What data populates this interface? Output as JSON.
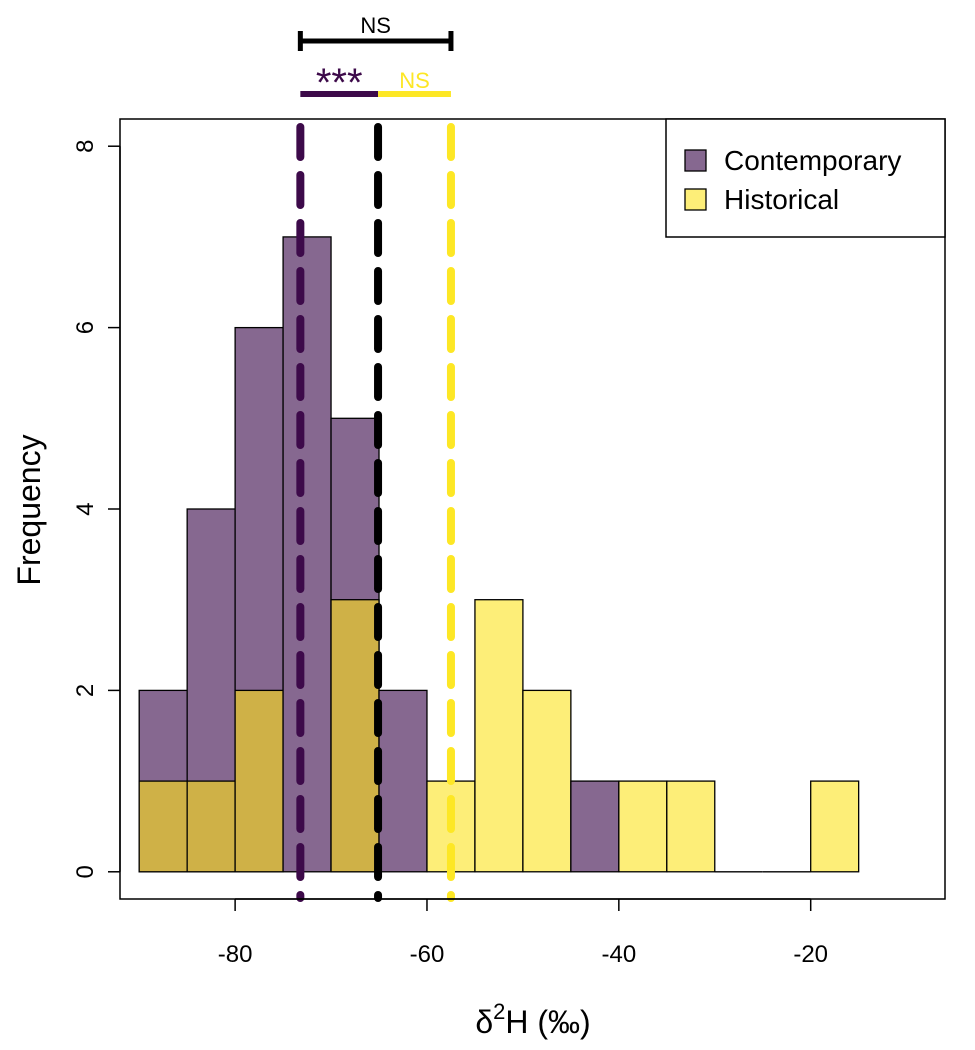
{
  "chart_data": {
    "type": "histogram",
    "xlabel_prefix": "δ",
    "xlabel_sup": "2",
    "xlabel_suffix": "H (‰)",
    "ylabel": "Frequency",
    "xlim": [
      -92,
      -6
    ],
    "ylim": [
      -0.3,
      8.3
    ],
    "x_ticks": [
      -80,
      -60,
      -40,
      -20
    ],
    "x_tick_labels": [
      "-80",
      "-60",
      "-40",
      "-20"
    ],
    "y_ticks": [
      0,
      2,
      4,
      6,
      8
    ],
    "y_tick_labels": [
      "0",
      "2",
      "4",
      "6",
      "8"
    ],
    "bin_edges": [
      -90,
      -85,
      -80,
      -75,
      -70,
      -65,
      -60,
      -55,
      -50,
      -45,
      -40,
      -35,
      -30,
      -25,
      -20,
      -15
    ],
    "series": [
      {
        "name": "Contemporary",
        "color": "#866890",
        "counts": [
          2,
          4,
          6,
          7,
          5,
          2,
          0,
          0,
          0,
          1,
          0,
          0,
          0,
          0,
          0
        ]
      },
      {
        "name": "Historical",
        "color": "#fdee78",
        "counts": [
          1,
          1,
          2,
          0,
          3,
          0,
          1,
          3,
          2,
          0,
          1,
          1,
          0,
          0,
          1
        ]
      }
    ],
    "overlap_color": "#cfb147",
    "means": [
      {
        "series": "Contemporary",
        "x": -73.2,
        "color": "#3d0a4a"
      },
      {
        "series": "All",
        "x": -65.1,
        "color": "#000000"
      },
      {
        "series": "Historical",
        "x": -57.5,
        "color": "#fde725"
      }
    ],
    "significance": [
      {
        "label": "NS",
        "from": -73.2,
        "to": -57.5,
        "color": "#000000",
        "level": "top"
      },
      {
        "label": "***",
        "from": -73.2,
        "to": -65.1,
        "color": "#3d0a4a",
        "level": "lower"
      },
      {
        "label": "NS",
        "from": -65.1,
        "to": -57.5,
        "color": "#fde725",
        "level": "lower"
      }
    ],
    "legend": {
      "position": "top-right",
      "entries": [
        {
          "label": "Contemporary",
          "color": "#866890"
        },
        {
          "label": "Historical",
          "color": "#fdee78"
        }
      ]
    }
  }
}
